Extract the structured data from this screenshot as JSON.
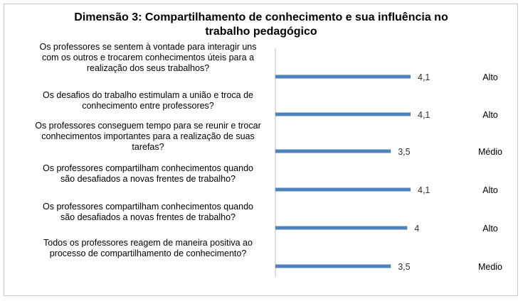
{
  "chart_data": {
    "type": "bar",
    "orientation": "horizontal",
    "title_lines": [
      "Dimensão 3: Compartilhamento de conhecimento e sua influência no",
      "trabalho pedagógico"
    ],
    "categories": [
      [
        "Os professores se sentem à vontade para interagir uns",
        "com os outros e trocarem conhecimentos úteis para a",
        "realização dos seus trabalhos?"
      ],
      [
        "Os desafios do trabalho estimulam a união e troca de",
        "conhecimento entre professores?"
      ],
      [
        "Os professores conseguem tempo para se reunir e trocar",
        "conhecimentos importantes para a realização de suas",
        "tarefas?"
      ],
      [
        "Os professores compartilham conhecimentos quando",
        "são desafiados a novas frentes de trabalho?"
      ],
      [
        "Os professores compartilham conhecimentos quando",
        "são desafiados a novas frentes de trabalho?"
      ],
      [
        "Todos os professores reagem de maneira positiva ao",
        "processo de compartilhamento de conhecimento?"
      ]
    ],
    "values": [
      4.1,
      4.1,
      3.5,
      4.1,
      4,
      3.5
    ],
    "value_labels": [
      "4,1",
      "4,1",
      "3,5",
      "4,1",
      "4",
      "3,5"
    ],
    "classifications": [
      "Alto",
      "Alto",
      "Médio",
      "Alto",
      "Alto",
      "Medio"
    ],
    "xlim": [
      0,
      4.1
    ],
    "grid": false,
    "legend": "none",
    "bar_color": "#4f81bd",
    "axis_color": "#bfbfbf"
  }
}
